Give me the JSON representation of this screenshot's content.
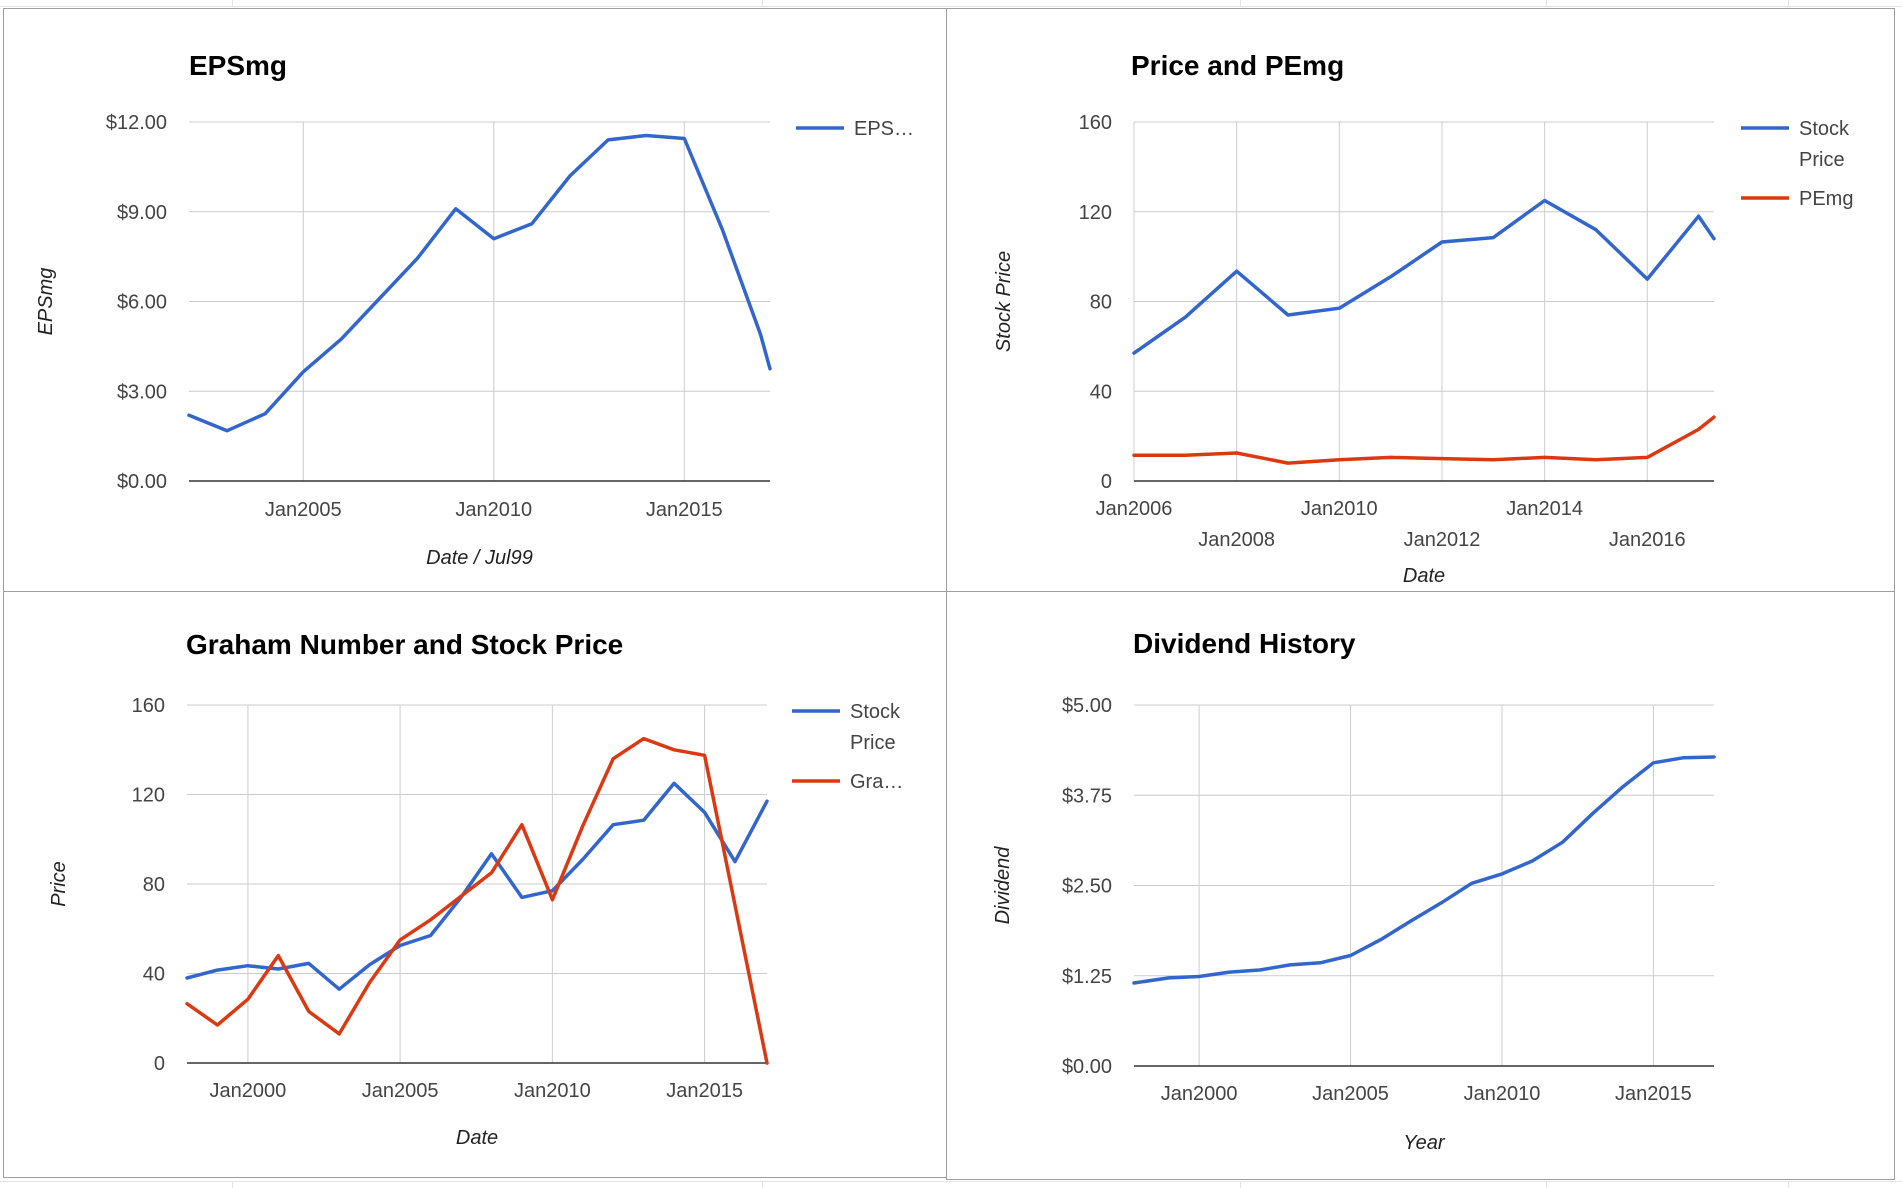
{
  "colors": {
    "stock_price": "#3366cc",
    "second_series": "#dc3912",
    "gridline": "#cccccc",
    "axis_baseline": "#333333",
    "tick_text": "#444444",
    "title_text": "#000000",
    "axis_title_text": "#222222"
  },
  "chart_data": [
    {
      "type": "line",
      "title": "EPSmg",
      "xlabel": "Date / Jul99",
      "ylabel": "EPSmg",
      "x_tick_labels": [
        "Jan2005",
        "Jan2010",
        "Jan2015"
      ],
      "y_tick_labels": [
        "$0.00",
        "$3.00",
        "$6.00",
        "$9.00",
        "$12.00"
      ],
      "ylim": [
        0,
        12
      ],
      "xlim": [
        2002,
        2017.25
      ],
      "grid": true,
      "legend_position": "right",
      "series": [
        {
          "name": "EPS…",
          "x": [
            2002,
            2003,
            2004,
            2005,
            2006,
            2007,
            2008,
            2009,
            2010,
            2011,
            2012,
            2013,
            2014,
            2015,
            2016,
            2017,
            2017.25
          ],
          "values": [
            2.2,
            1.68,
            2.25,
            3.65,
            4.75,
            6.1,
            7.45,
            9.1,
            8.1,
            8.6,
            10.2,
            11.4,
            11.55,
            11.45,
            8.4,
            4.9,
            3.75
          ]
        }
      ]
    },
    {
      "type": "line",
      "title": "Price and PEmg",
      "xlabel": "Date",
      "ylabel": "Stock Price",
      "x_tick_labels": [
        "Jan2006",
        "Jan2008",
        "Jan2010",
        "Jan2012",
        "Jan2014",
        "Jan2016"
      ],
      "y_tick_labels": [
        "0",
        "40",
        "80",
        "120",
        "160"
      ],
      "ylim": [
        0,
        160
      ],
      "xlim": [
        2006,
        2017.3
      ],
      "grid": true,
      "legend_position": "right",
      "series": [
        {
          "name": "Stock Price",
          "x": [
            2006,
            2007,
            2008,
            2009,
            2010,
            2011,
            2012,
            2013,
            2014,
            2015,
            2016,
            2017,
            2017.3
          ],
          "values": [
            57,
            73,
            93.5,
            74,
            77,
            91,
            106.5,
            108.5,
            125,
            112,
            90,
            118,
            108
          ]
        },
        {
          "name": "PEmg",
          "x": [
            2006,
            2007,
            2008,
            2009,
            2010,
            2011,
            2012,
            2013,
            2014,
            2015,
            2016,
            2017,
            2017.3
          ],
          "values": [
            11.5,
            11.5,
            12.5,
            8,
            9.5,
            10.5,
            10,
            9.5,
            10.5,
            9.5,
            10.5,
            23,
            28.5
          ]
        }
      ]
    },
    {
      "type": "line",
      "title": "Graham Number and Stock Price",
      "xlabel": "Date",
      "ylabel": "Price",
      "x_tick_labels": [
        "Jan2000",
        "Jan2005",
        "Jan2010",
        "Jan2015"
      ],
      "y_tick_labels": [
        "0",
        "40",
        "80",
        "120",
        "160"
      ],
      "ylim": [
        0,
        160
      ],
      "xlim": [
        1998,
        2017.05
      ],
      "grid": true,
      "legend_position": "right",
      "series": [
        {
          "name": "Stock Price",
          "x": [
            1998,
            1999,
            2000,
            2001,
            2002,
            2003,
            2004,
            2005,
            2006,
            2007,
            2008,
            2009,
            2010,
            2011,
            2012,
            2013,
            2014,
            2015,
            2016,
            2017.05
          ],
          "values": [
            38,
            41.5,
            43.5,
            42,
            44.5,
            33,
            44,
            52.5,
            57,
            74,
            93.5,
            74,
            77,
            91,
            106.5,
            108.5,
            125,
            112,
            90,
            117
          ]
        },
        {
          "name": "Gra…",
          "x": [
            1998,
            1999,
            2000,
            2001,
            2002,
            2003,
            2004,
            2005,
            2006,
            2007,
            2008,
            2009,
            2010,
            2011,
            2012,
            2013,
            2014,
            2015,
            2017.05
          ],
          "values": [
            26.5,
            17,
            28.5,
            48,
            23,
            13,
            36,
            55,
            64,
            74.5,
            85,
            106.5,
            73,
            106,
            136,
            145,
            140,
            137.5,
            0
          ]
        }
      ]
    },
    {
      "type": "line",
      "title": "Dividend History",
      "xlabel": "Year",
      "ylabel": "Dividend",
      "x_tick_labels": [
        "Jan2000",
        "Jan2005",
        "Jan2010",
        "Jan2015"
      ],
      "y_tick_labels": [
        "$0.00",
        "$1.25",
        "$2.50",
        "$3.75",
        "$5.00"
      ],
      "ylim": [
        0,
        5
      ],
      "xlim": [
        1997.85,
        2017
      ],
      "grid": true,
      "legend_position": "none",
      "series": [
        {
          "x": [
            1997.85,
            1999,
            2000,
            2001,
            2002,
            2003,
            2004,
            2005,
            2006,
            2007,
            2008,
            2009,
            2010,
            2011,
            2012,
            2013,
            2014,
            2015,
            2016,
            2017
          ],
          "values": [
            1.15,
            1.22,
            1.24,
            1.3,
            1.33,
            1.4,
            1.43,
            1.53,
            1.75,
            2.01,
            2.26,
            2.53,
            2.66,
            2.84,
            3.1,
            3.5,
            3.87,
            4.2,
            4.27,
            4.28
          ]
        }
      ]
    }
  ]
}
